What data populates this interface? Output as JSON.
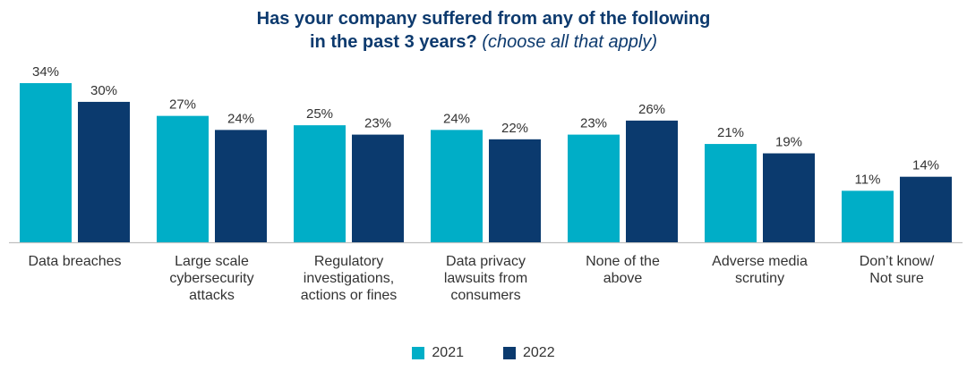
{
  "chart_data": {
    "type": "bar",
    "title_line1": "Has your company suffered from any of the following",
    "title_line2_bold": "in the past 3 years?",
    "title_line2_italic": "(choose all that apply)",
    "categories": [
      [
        "Data breaches"
      ],
      [
        "Large scale",
        "cybersecurity",
        "attacks"
      ],
      [
        "Regulatory",
        "investigations,",
        "actions or fines"
      ],
      [
        "Data privacy",
        "lawsuits from",
        "consumers"
      ],
      [
        "None of the",
        "above"
      ],
      [
        "Adverse media",
        "scrutiny"
      ],
      [
        "Don’t know/",
        "Not sure"
      ]
    ],
    "series": [
      {
        "name": "2021",
        "color": "#00aec7",
        "values": [
          34,
          27,
          25,
          24,
          23,
          21,
          11
        ],
        "labels": [
          "34%",
          "27%",
          "25%",
          "24%",
          "23%",
          "21%",
          "11%"
        ]
      },
      {
        "name": "2022",
        "color": "#0b3a6e",
        "values": [
          30,
          24,
          23,
          22,
          26,
          19,
          14
        ],
        "labels": [
          "30%",
          "24%",
          "23%",
          "22%",
          "26%",
          "19%",
          "14%"
        ]
      }
    ],
    "ylim": [
      0,
      34
    ],
    "xlabel": "",
    "ylabel": "",
    "legend_position": "bottom-center"
  }
}
